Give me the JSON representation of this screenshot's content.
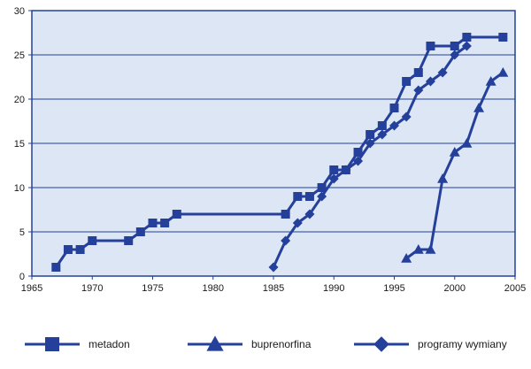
{
  "chart_data": {
    "type": "line",
    "title": "",
    "xlabel": "",
    "ylabel": "",
    "xlim": [
      1965,
      2005
    ],
    "ylim": [
      0,
      30
    ],
    "x_ticks": [
      1965,
      1970,
      1975,
      1980,
      1985,
      1990,
      1995,
      2000,
      2005
    ],
    "y_ticks": [
      0,
      5,
      10,
      15,
      20,
      25,
      30
    ],
    "grid": "horizontal",
    "legend_position": "bottom",
    "colors": {
      "plot_background": "#dde6f4",
      "series": "#24409a",
      "gridline": "#24409a",
      "axis": "#24409a"
    },
    "series": [
      {
        "name": "metadon",
        "marker": "square",
        "points": [
          [
            1967,
            1
          ],
          [
            1968,
            3
          ],
          [
            1969,
            3
          ],
          [
            1970,
            4
          ],
          [
            1973,
            4
          ],
          [
            1974,
            5
          ],
          [
            1975,
            6
          ],
          [
            1976,
            6
          ],
          [
            1977,
            7
          ],
          [
            1986,
            7
          ],
          [
            1987,
            9
          ],
          [
            1988,
            9
          ],
          [
            1989,
            10
          ],
          [
            1990,
            12
          ],
          [
            1991,
            12
          ],
          [
            1992,
            14
          ],
          [
            1993,
            16
          ],
          [
            1994,
            17
          ],
          [
            1995,
            19
          ],
          [
            1996,
            22
          ],
          [
            1997,
            23
          ],
          [
            1998,
            26
          ],
          [
            2000,
            26
          ],
          [
            2001,
            27
          ],
          [
            2004,
            27
          ]
        ]
      },
      {
        "name": "buprenorfina",
        "marker": "triangle",
        "points": [
          [
            1996,
            2
          ],
          [
            1997,
            3
          ],
          [
            1998,
            3
          ],
          [
            1999,
            11
          ],
          [
            2000,
            14
          ],
          [
            2001,
            15
          ],
          [
            2002,
            19
          ],
          [
            2003,
            22
          ],
          [
            2004,
            23
          ]
        ]
      },
      {
        "name": "programy wymiany",
        "marker": "diamond",
        "points": [
          [
            1985,
            1
          ],
          [
            1986,
            4
          ],
          [
            1987,
            6
          ],
          [
            1988,
            7
          ],
          [
            1989,
            9
          ],
          [
            1990,
            11
          ],
          [
            1991,
            12
          ],
          [
            1992,
            13
          ],
          [
            1993,
            15
          ],
          [
            1994,
            16
          ],
          [
            1995,
            17
          ],
          [
            1996,
            18
          ],
          [
            1997,
            21
          ],
          [
            1998,
            22
          ],
          [
            1999,
            23
          ],
          [
            2000,
            25
          ],
          [
            2001,
            26
          ]
        ]
      }
    ]
  }
}
